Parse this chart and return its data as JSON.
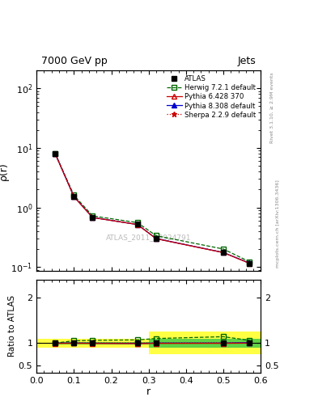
{
  "title_left": "7000 GeV pp",
  "title_right": "Jets",
  "watermark": "ATLAS_2011_S8924791",
  "rivet_label": "Rivet 3.1.10, ≥ 2.9M events",
  "arxiv_label": "mcplots.cern.ch [arXiv:1306.3436]",
  "xlabel": "r",
  "ylabel_main": "ρ(r)",
  "ylabel_ratio": "Ratio to ATLAS",
  "atlas_x": [
    0.05,
    0.1,
    0.15,
    0.27,
    0.32,
    0.5,
    0.57
  ],
  "atlas_y": [
    8.0,
    1.52,
    0.68,
    0.52,
    0.3,
    0.175,
    0.115
  ],
  "herwig_x": [
    0.05,
    0.1,
    0.15,
    0.27,
    0.32,
    0.5,
    0.57
  ],
  "herwig_y": [
    8.0,
    1.6,
    0.72,
    0.555,
    0.335,
    0.2,
    0.122
  ],
  "pythia6_x": [
    0.05,
    0.1,
    0.15,
    0.27,
    0.32,
    0.5,
    0.57
  ],
  "pythia6_y": [
    7.95,
    1.515,
    0.675,
    0.515,
    0.298,
    0.174,
    0.115
  ],
  "pythia8_x": [
    0.05,
    0.1,
    0.15,
    0.27,
    0.32,
    0.5,
    0.57
  ],
  "pythia8_y": [
    7.98,
    1.52,
    0.678,
    0.516,
    0.3,
    0.175,
    0.116
  ],
  "sherpa_x": [
    0.05,
    0.1,
    0.15,
    0.27,
    0.32,
    0.5,
    0.57
  ],
  "sherpa_y": [
    8.0,
    1.52,
    0.68,
    0.52,
    0.3,
    0.175,
    0.115
  ],
  "herwig_ratio_x": [
    0.05,
    0.1,
    0.15,
    0.27,
    0.32,
    0.5,
    0.57
  ],
  "herwig_ratio": [
    1.0,
    1.05,
    1.06,
    1.07,
    1.1,
    1.14,
    1.06
  ],
  "pythia6_ratio_x": [
    0.05,
    0.1,
    0.15,
    0.27,
    0.32,
    0.5,
    0.57
  ],
  "pythia6_ratio": [
    0.994,
    0.996,
    0.993,
    0.99,
    0.993,
    0.995,
    0.999
  ],
  "pythia8_ratio_x": [
    0.05,
    0.1,
    0.15,
    0.27,
    0.32,
    0.5,
    0.57
  ],
  "pythia8_ratio": [
    0.998,
    1.0,
    0.997,
    0.992,
    1.0,
    1.0,
    1.009
  ],
  "sherpa_ratio_x": [
    0.05,
    0.1,
    0.15,
    0.27,
    0.32,
    0.5,
    0.57
  ],
  "sherpa_ratio": [
    1.0,
    1.0,
    1.0,
    1.0,
    1.0,
    1.002,
    1.0
  ],
  "yellow_band_edges": [
    0.0,
    0.15,
    0.3,
    0.6
  ],
  "yellow_band_low": [
    0.9,
    0.9,
    0.75,
    0.75
  ],
  "yellow_band_high": [
    1.1,
    1.1,
    1.25,
    1.25
  ],
  "green_band_edges": [
    0.05,
    0.15,
    0.3,
    0.6
  ],
  "green_band_low": [
    0.97,
    0.97,
    0.9,
    0.88
  ],
  "green_band_high": [
    1.03,
    1.03,
    1.1,
    1.12
  ],
  "color_atlas": "#000000",
  "color_herwig": "#006600",
  "color_pythia6": "#cc0000",
  "color_pythia8": "#0000cc",
  "color_sherpa": "#cc0000",
  "color_yellow": "#ffff44",
  "color_green": "#44cc44",
  "ylim_main": [
    0.085,
    200
  ],
  "ylim_ratio": [
    0.35,
    2.4
  ],
  "xlim": [
    0.0,
    0.6
  ]
}
